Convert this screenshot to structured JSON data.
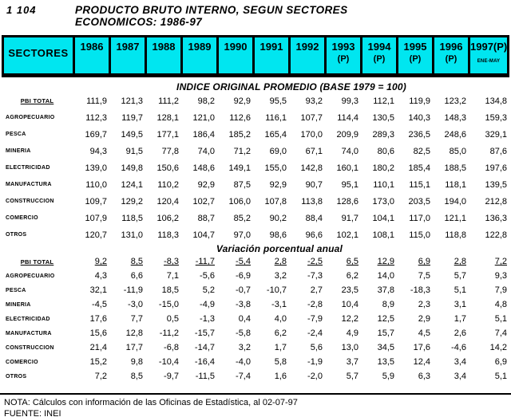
{
  "page": {
    "code": "1 104",
    "title_line1": "PRODUCTO BRUTO INTERNO, SEGUN SECTORES",
    "title_line2": "ECONOMICOS: 1986-97"
  },
  "colors": {
    "header_bg": "#00E6F0",
    "border": "#000000"
  },
  "table": {
    "header": {
      "sectors_label": "SECTORES",
      "columns": [
        {
          "line1": "1986",
          "line2": ""
        },
        {
          "line1": "1987",
          "line2": ""
        },
        {
          "line1": "1988",
          "line2": ""
        },
        {
          "line1": "1989",
          "line2": ""
        },
        {
          "line1": "1990",
          "line2": ""
        },
        {
          "line1": "1991",
          "line2": ""
        },
        {
          "line1": "1992",
          "line2": ""
        },
        {
          "line1": "1993",
          "line2": "(P)"
        },
        {
          "line1": "1994",
          "line2": "(P)"
        },
        {
          "line1": "1995",
          "line2": "(P)"
        },
        {
          "line1": "1996",
          "line2": "(P)"
        },
        {
          "line1": "1997(P)",
          "line2": "ENE-MAY"
        }
      ]
    },
    "sections": [
      {
        "title": "INDICE ORIGINAL PROMEDIO (BASE 1979 = 100)",
        "rows": [
          {
            "label": "PBI TOTAL",
            "underline_label": true,
            "underline_values": false,
            "values": [
              "111,9",
              "121,3",
              "111,2",
              "98,2",
              "92,9",
              "95,5",
              "93,2",
              "99,3",
              "112,1",
              "119,9",
              "123,2",
              "134,8"
            ]
          },
          {
            "label": "AGROPECUARIO",
            "underline_label": false,
            "underline_values": false,
            "values": [
              "112,3",
              "119,7",
              "128,1",
              "121,0",
              "112,6",
              "116,1",
              "107,7",
              "114,4",
              "130,5",
              "140,3",
              "148,3",
              "159,3"
            ]
          },
          {
            "label": "PESCA",
            "underline_label": false,
            "underline_values": false,
            "values": [
              "169,7",
              "149,5",
              "177,1",
              "186,4",
              "185,2",
              "165,4",
              "170,0",
              "209,9",
              "289,3",
              "236,5",
              "248,6",
              "329,1"
            ]
          },
          {
            "label": "MINERIA",
            "underline_label": false,
            "underline_values": false,
            "values": [
              "94,3",
              "91,5",
              "77,8",
              "74,0",
              "71,2",
              "69,0",
              "67,1",
              "74,0",
              "80,6",
              "82,5",
              "85,0",
              "87,6"
            ]
          },
          {
            "label": "ELECTRICIDAD",
            "underline_label": false,
            "underline_values": false,
            "values": [
              "139,0",
              "149,8",
              "150,6",
              "148,6",
              "149,1",
              "155,0",
              "142,8",
              "160,1",
              "180,2",
              "185,4",
              "188,5",
              "197,6"
            ]
          },
          {
            "label": "MANUFACTURA",
            "underline_label": false,
            "underline_values": false,
            "values": [
              "110,0",
              "124,1",
              "110,2",
              "92,9",
              "87,5",
              "92,9",
              "90,7",
              "95,1",
              "110,1",
              "115,1",
              "118,1",
              "139,5"
            ]
          },
          {
            "label": "CONSTRUCCION",
            "underline_label": false,
            "underline_values": false,
            "values": [
              "109,7",
              "129,2",
              "120,4",
              "102,7",
              "106,0",
              "107,8",
              "113,8",
              "128,6",
              "173,0",
              "203,5",
              "194,0",
              "212,8"
            ]
          },
          {
            "label": "COMERCIO",
            "underline_label": false,
            "underline_values": false,
            "values": [
              "107,9",
              "118,5",
              "106,2",
              "88,7",
              "85,2",
              "90,2",
              "88,4",
              "91,7",
              "104,1",
              "117,0",
              "121,1",
              "136,3"
            ]
          },
          {
            "label": "OTROS",
            "underline_label": false,
            "underline_values": false,
            "values": [
              "120,7",
              "131,0",
              "118,3",
              "104,7",
              "97,0",
              "98,6",
              "96,6",
              "102,1",
              "108,1",
              "115,0",
              "118,8",
              "122,8"
            ]
          }
        ]
      },
      {
        "title": "Variación porcentual anual",
        "rows": [
          {
            "label": "PBI TOTAL",
            "underline_label": true,
            "underline_values": true,
            "values": [
              "9,2",
              "8,5",
              "-8,3",
              "-11,7",
              "-5,4",
              "2,8",
              "-2,5",
              "6,5",
              "12,9",
              "6,9",
              "2,8",
              "7,2"
            ]
          },
          {
            "label": "AGROPECUARIO",
            "underline_label": false,
            "underline_values": false,
            "values": [
              "4,3",
              "6,6",
              "7,1",
              "-5,6",
              "-6,9",
              "3,2",
              "-7,3",
              "6,2",
              "14,0",
              "7,5",
              "5,7",
              "9,3"
            ]
          },
          {
            "label": "PESCA",
            "underline_label": false,
            "underline_values": false,
            "values": [
              "32,1",
              "-11,9",
              "18,5",
              "5,2",
              "-0,7",
              "-10,7",
              "2,7",
              "23,5",
              "37,8",
              "-18,3",
              "5,1",
              "7,9"
            ]
          },
          {
            "label": "MINERIA",
            "underline_label": false,
            "underline_values": false,
            "values": [
              "-4,5",
              "-3,0",
              "-15,0",
              "-4,9",
              "-3,8",
              "-3,1",
              "-2,8",
              "10,4",
              "8,9",
              "2,3",
              "3,1",
              "4,8"
            ]
          },
          {
            "label": "ELECTRICIDAD",
            "underline_label": false,
            "underline_values": false,
            "values": [
              "17,6",
              "7,7",
              "0,5",
              "-1,3",
              "0,4",
              "4,0",
              "-7,9",
              "12,2",
              "12,5",
              "2,9",
              "1,7",
              "5,1"
            ]
          },
          {
            "label": "MANUFACTURA",
            "underline_label": false,
            "underline_values": false,
            "values": [
              "15,6",
              "12,8",
              "-11,2",
              "-15,7",
              "-5,8",
              "6,2",
              "-2,4",
              "4,9",
              "15,7",
              "4,5",
              "2,6",
              "7,4"
            ]
          },
          {
            "label": "CONSTRUCCION",
            "underline_label": false,
            "underline_values": false,
            "values": [
              "21,4",
              "17,7",
              "-6,8",
              "-14,7",
              "3,2",
              "1,7",
              "5,6",
              "13,0",
              "34,5",
              "17,6",
              "-4,6",
              "14,2"
            ]
          },
          {
            "label": "COMERCIO",
            "underline_label": false,
            "underline_values": false,
            "values": [
              "15,2",
              "9,8",
              "-10,4",
              "-16,4",
              "-4,0",
              "5,8",
              "-1,9",
              "3,7",
              "13,5",
              "12,4",
              "3,4",
              "6,9"
            ]
          },
          {
            "label": "OTROS",
            "underline_label": false,
            "underline_values": false,
            "values": [
              "7,2",
              "8,5",
              "-9,7",
              "-11,5",
              "-7,4",
              "1,6",
              "-2,0",
              "5,7",
              "5,9",
              "6,3",
              "3,4",
              "5,1"
            ]
          }
        ]
      }
    ]
  },
  "footer": {
    "note": "NOTA: Cálculos con información de las Oficinas de Estadística, al 02-07-97",
    "source": "FUENTE:  INEI"
  }
}
